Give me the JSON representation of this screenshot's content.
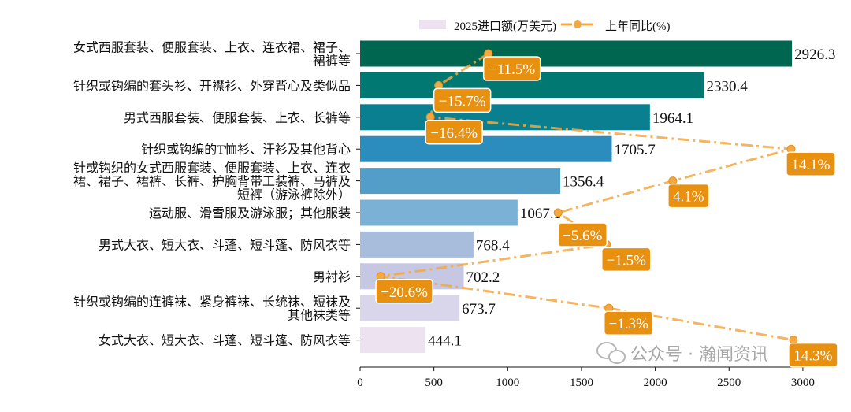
{
  "chart_data": {
    "type": "bar",
    "orientation": "horizontal",
    "categories": [
      "女式西服套装、便服套装、上衣、连衣裙、裙子、\n裙裤等",
      "针织或钩编的套头衫、开襟衫、外穿背心及类似品",
      "男式西服套装、便服套装、上衣、长裤等",
      "针织或钩编的T恤衫、汗衫及其他背心",
      "针或钩织的女式西服套装、便服套装、上衣、连衣\n裙、裙子、裙裤、长裤、护胸背带工装裤、马裤及\n短裤（游泳裤除外）",
      "运动服、滑雪服及游泳服；其他服装",
      "男式大衣、短大衣、斗蓬、短斗篷、防风衣等",
      "男衬衫",
      "针织或钩编的连裤袜、紧身裤袜、长统袜、短袜及\n其他袜类等",
      "女式大衣、短大衣、斗蓬、短斗篷、防风衣等"
    ],
    "series": [
      {
        "name": "2025进口额(万美元)",
        "type": "bar",
        "values": [
          2926.3,
          2330.4,
          1964.1,
          1705.7,
          1356.4,
          1067.1,
          768.4,
          702.2,
          673.7,
          444.1
        ],
        "value_labels": [
          "2926.3",
          "2330.4",
          "1964.1",
          "1705.7",
          "1356.4",
          "1067.1",
          "768.4",
          "702.2",
          "673.7",
          "444.1"
        ],
        "colors": [
          "#00664f",
          "#017871",
          "#0a7f8f",
          "#2b8cbe",
          "#529ec9",
          "#7ab1d5",
          "#a8bddc",
          "#c6c8e3",
          "#d9d5ea",
          "#ece2f0"
        ]
      },
      {
        "name": "上年同比(%)",
        "type": "line",
        "color": "#f5a742",
        "values": [
          -11.5,
          -15.7,
          -16.4,
          14.1,
          4.1,
          -5.6,
          -1.5,
          -20.6,
          -1.3,
          14.3
        ],
        "value_labels": [
          "−11.5%",
          "−15.7%",
          "−16.4%",
          "14.1%",
          "4.1%",
          "−5.6%",
          "−1.5%",
          "−20.6%",
          "−1.3%",
          "14.3%"
        ],
        "label_color": "#e8900f"
      }
    ],
    "xticks": [
      "0",
      "500",
      "1000",
      "1500",
      "2000",
      "2500",
      "3000"
    ],
    "xtick_values": [
      0,
      500,
      1000,
      1500,
      2000,
      2500,
      3000
    ],
    "xlim": [
      0,
      3000
    ],
    "legend": "top",
    "grid": false
  },
  "watermark": "公众号 · 瀚闻资讯"
}
